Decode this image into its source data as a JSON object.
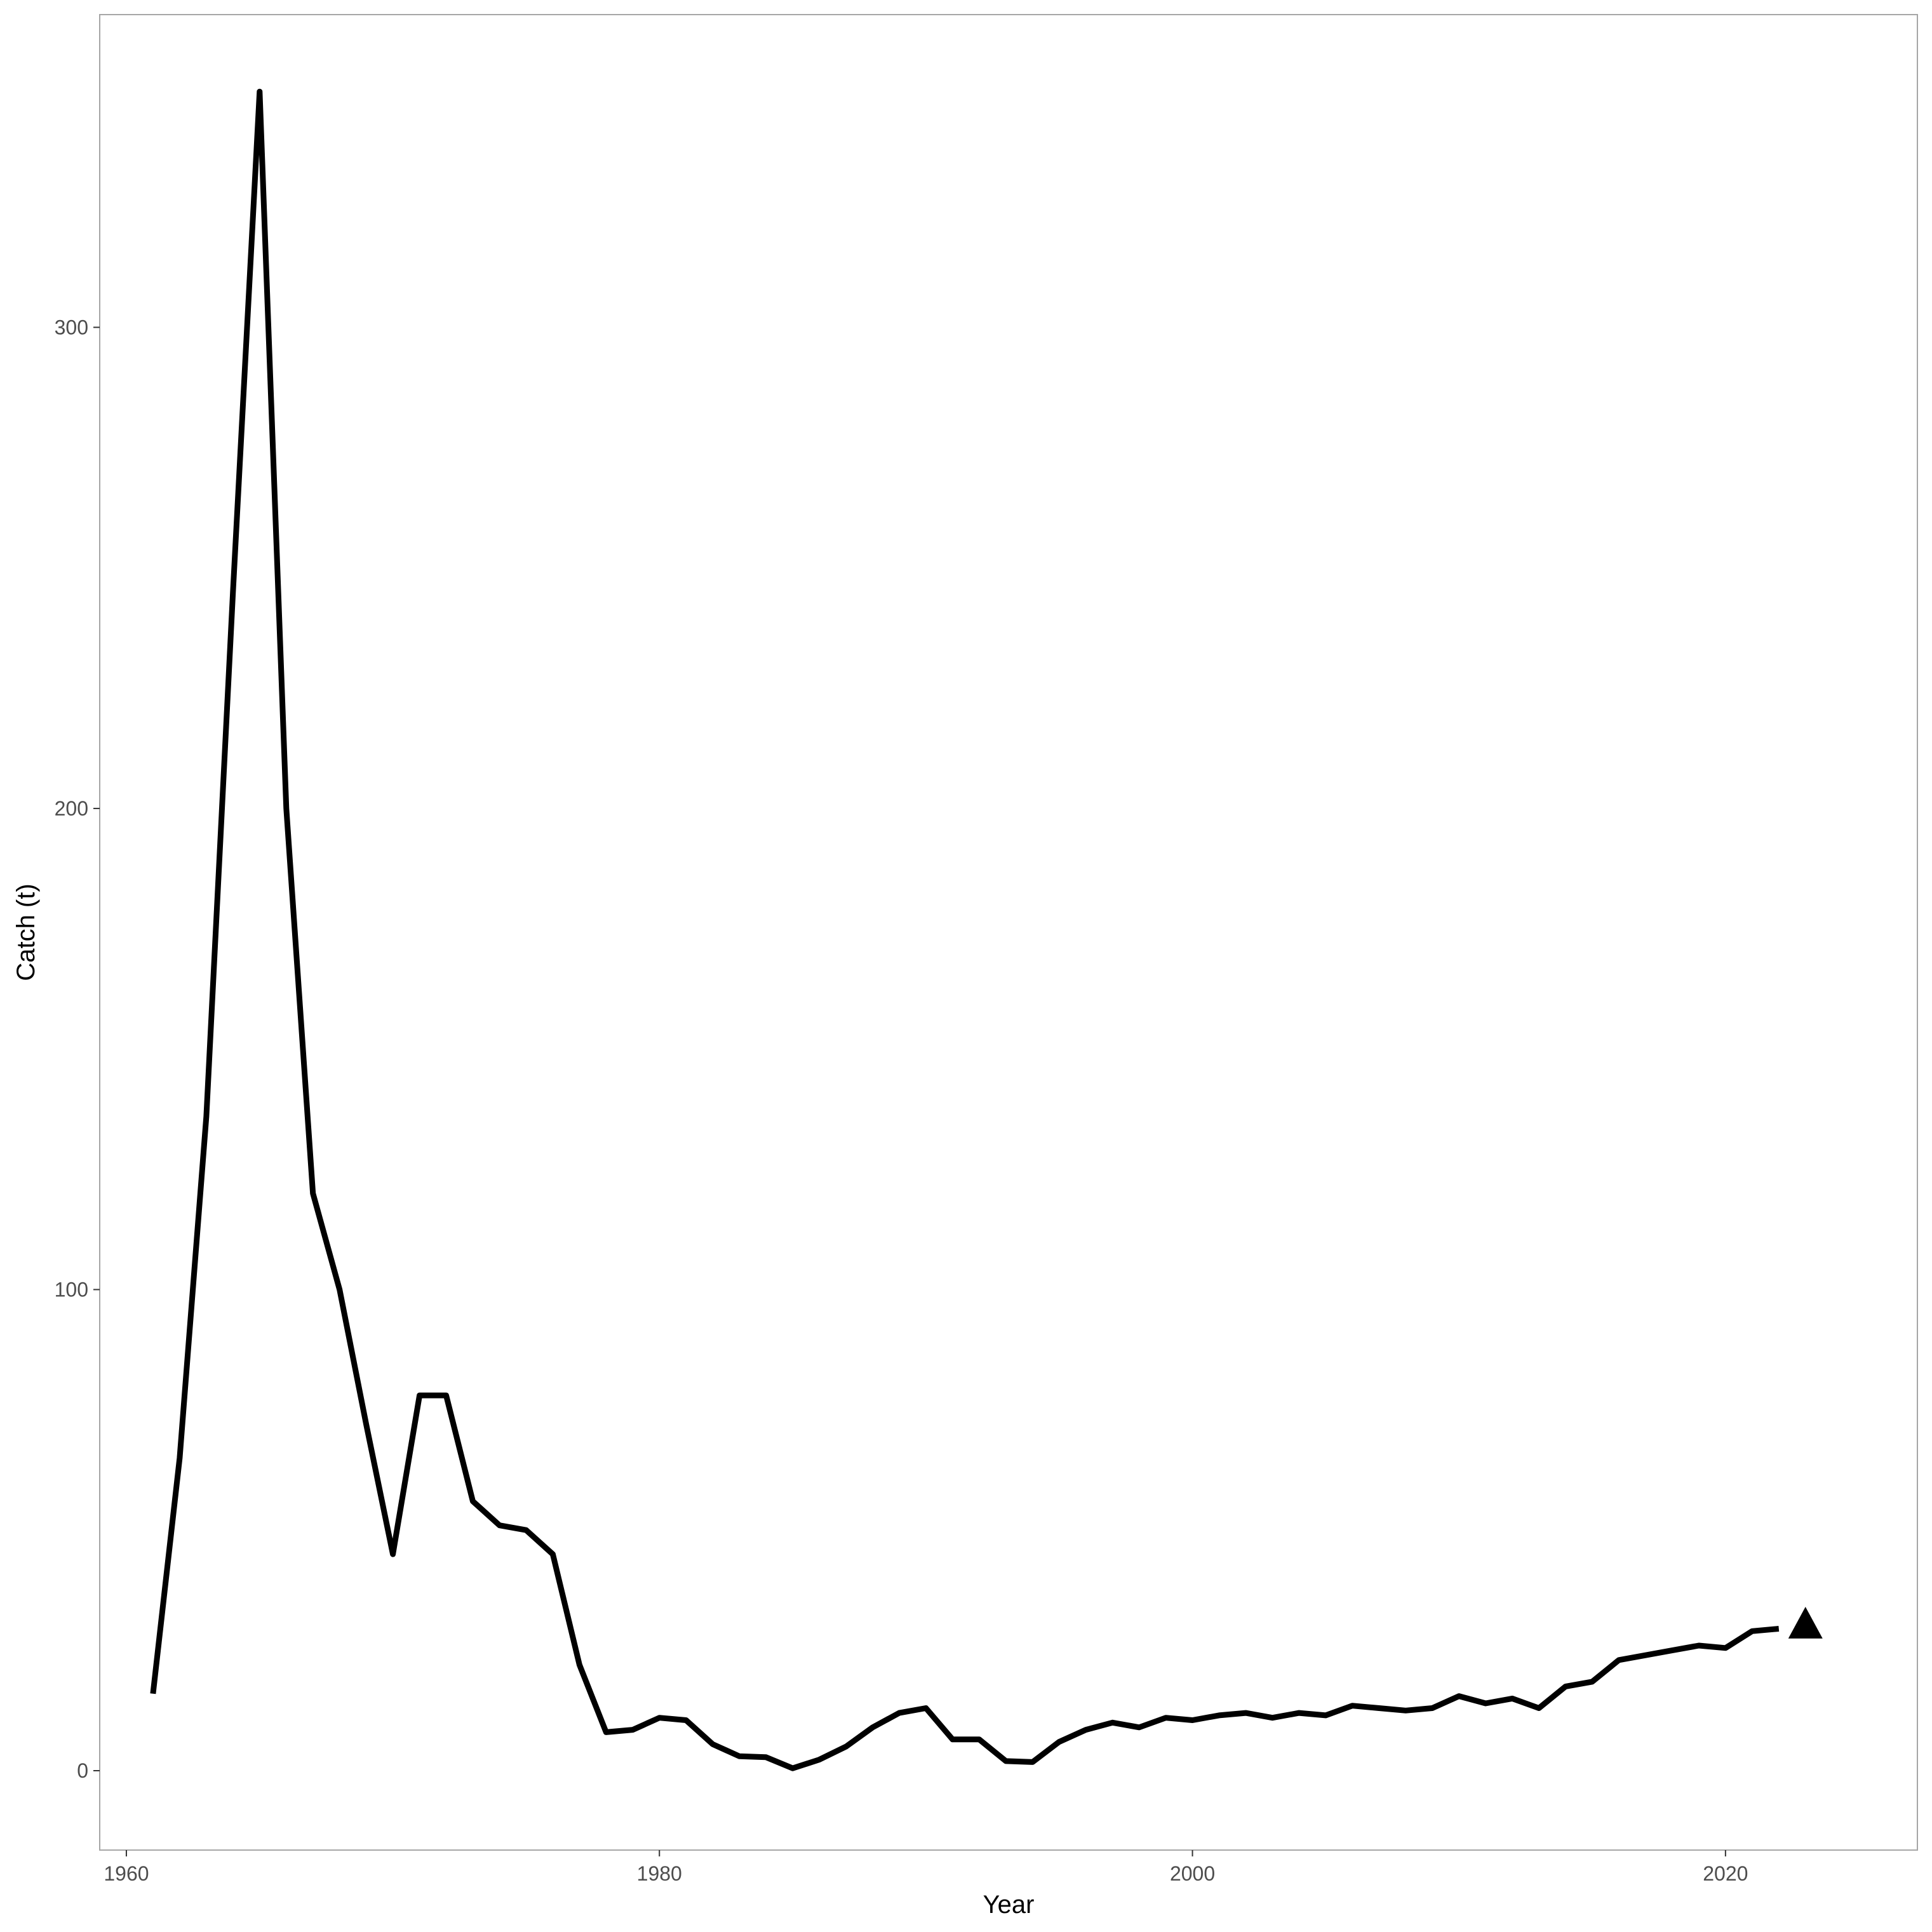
{
  "chart_data": {
    "type": "line",
    "title": "",
    "xlabel": "Year",
    "ylabel": "Catch (t)",
    "xlim": [
      1959.0,
      2027.2
    ],
    "ylim": [
      -16.5,
      365
    ],
    "x_ticks": [
      1960,
      1980,
      2000,
      2020
    ],
    "x_tick_labels": [
      "1960",
      "1980",
      "2000",
      "2020"
    ],
    "y_ticks": [
      0,
      100,
      200,
      300
    ],
    "y_tick_labels": [
      "0",
      "100",
      "200",
      "300"
    ],
    "grid": false,
    "legend": "none",
    "series": [
      {
        "x": [
          1961,
          1962,
          1963,
          1964,
          1965,
          1966,
          1967,
          1968,
          1969,
          1970,
          1971,
          1972,
          1973,
          1974,
          1975,
          1976,
          1977,
          1978,
          1979,
          1980,
          1981,
          1982,
          1983,
          1984,
          1985,
          1986,
          1987,
          1988,
          1989,
          1990,
          1991,
          1992,
          1993,
          1994,
          1995,
          1996,
          1997,
          1998,
          1999,
          2000,
          2001,
          2002,
          2003,
          2004,
          2005,
          2006,
          2007,
          2008,
          2009,
          2010,
          2011,
          2012,
          2013,
          2014,
          2015,
          2016,
          2017,
          2018,
          2019,
          2020,
          2021,
          2022
        ],
        "values": [
          16,
          65,
          136,
          245,
          349,
          200,
          120,
          100,
          72,
          45,
          78,
          78,
          56,
          51,
          50,
          45,
          22,
          8,
          8.5,
          11,
          10.5,
          5.5,
          3,
          2.8,
          0.5,
          2.3,
          5,
          9,
          12,
          13,
          6.5,
          6.5,
          2,
          1.8,
          6,
          8.5,
          10,
          9,
          11,
          10.5,
          11.5,
          12,
          11,
          12,
          11.5,
          13.5,
          13,
          12.5,
          13,
          15.5,
          14,
          15,
          13,
          17.5,
          18.5,
          23,
          24,
          25,
          26,
          25.5,
          29,
          29.5
        ],
        "color": "#000000"
      }
    ],
    "points": [
      {
        "x": 2023,
        "y": 30.5,
        "shape": "triangle",
        "color": "#000000"
      }
    ]
  }
}
